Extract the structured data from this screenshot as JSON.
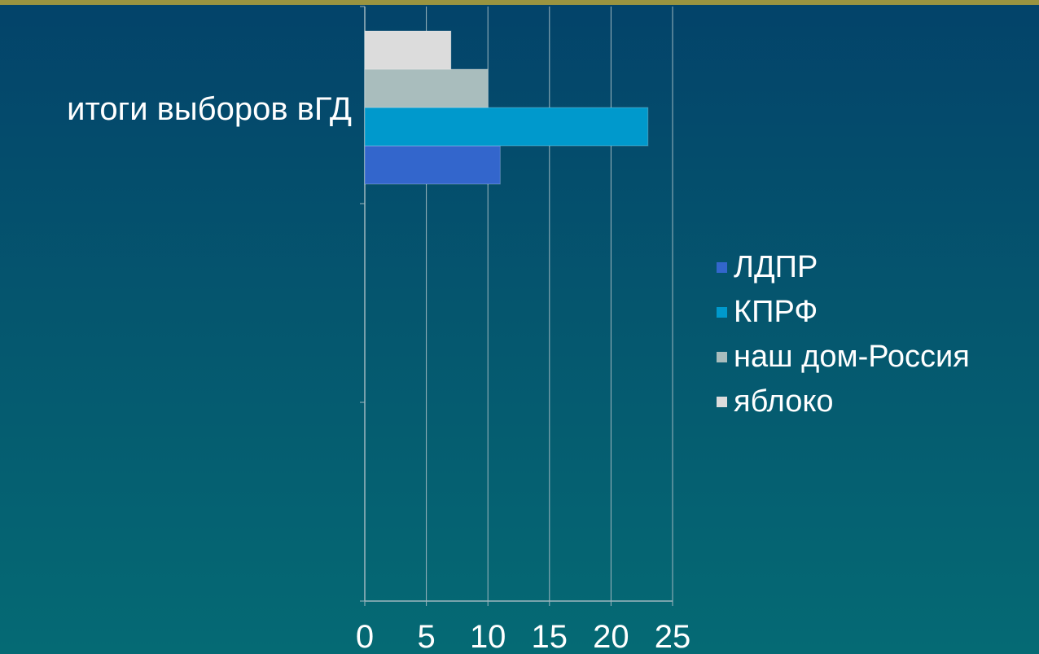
{
  "chart_data": {
    "type": "bar",
    "orientation": "horizontal",
    "categories": [
      "итоги выборов вГД"
    ],
    "series": [
      {
        "name": "ЛДПР",
        "values": [
          11
        ],
        "color": "#3366cc"
      },
      {
        "name": "КПРФ",
        "values": [
          23
        ],
        "color": "#0099cc"
      },
      {
        "name": "наш дом-Россия",
        "values": [
          10
        ],
        "color": "#a9bdbd"
      },
      {
        "name": "яблоко",
        "values": [
          7
        ],
        "color": "#dcdcdc"
      }
    ],
    "xlim": [
      0,
      25
    ],
    "x_ticks": [
      "0",
      "5",
      "10",
      "15",
      "20",
      "25"
    ],
    "grid": true,
    "legend_position": "right",
    "title": "",
    "xlabel": "",
    "ylabel": ""
  }
}
